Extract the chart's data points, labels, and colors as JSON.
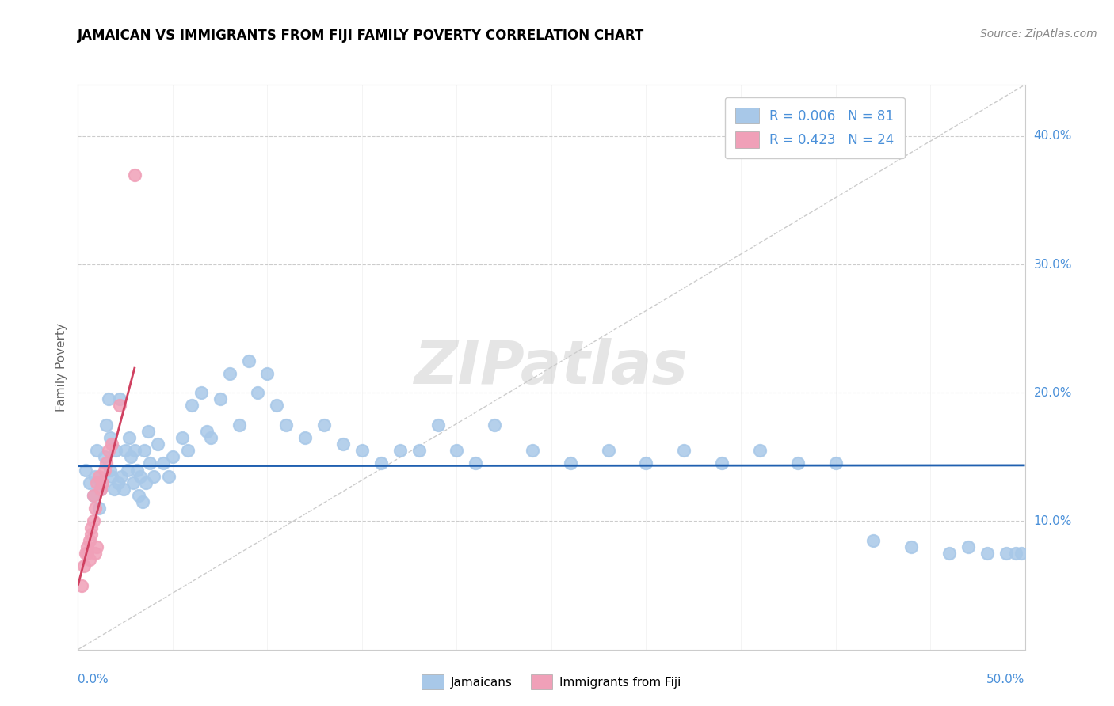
{
  "title": "JAMAICAN VS IMMIGRANTS FROM FIJI FAMILY POVERTY CORRELATION CHART",
  "source": "Source: ZipAtlas.com",
  "ylabel": "Family Poverty",
  "xmin": 0.0,
  "xmax": 0.5,
  "ymin": 0.0,
  "ymax": 0.44,
  "yticks": [
    0.1,
    0.2,
    0.3,
    0.4
  ],
  "ytick_labels": [
    "10.0%",
    "20.0%",
    "30.0%",
    "40.0%"
  ],
  "series1_color": "#a8c8e8",
  "series2_color": "#f0a0b8",
  "trend1_color": "#2060b0",
  "trend2_color": "#d04060",
  "watermark": "ZIPatlas",
  "legend1_label": "R = 0.006   N = 81",
  "legend2_label": "R = 0.423   N = 24",
  "bottom_label1": "Jamaicans",
  "bottom_label2": "Immigrants from Fiji",
  "jamaicans_x": [
    0.004,
    0.006,
    0.008,
    0.009,
    0.01,
    0.011,
    0.012,
    0.013,
    0.014,
    0.015,
    0.016,
    0.017,
    0.017,
    0.018,
    0.019,
    0.02,
    0.021,
    0.022,
    0.023,
    0.024,
    0.025,
    0.026,
    0.027,
    0.028,
    0.029,
    0.03,
    0.031,
    0.032,
    0.033,
    0.034,
    0.035,
    0.036,
    0.037,
    0.038,
    0.04,
    0.042,
    0.045,
    0.048,
    0.05,
    0.055,
    0.058,
    0.06,
    0.065,
    0.068,
    0.07,
    0.075,
    0.08,
    0.085,
    0.09,
    0.095,
    0.1,
    0.105,
    0.11,
    0.12,
    0.13,
    0.14,
    0.15,
    0.16,
    0.17,
    0.18,
    0.19,
    0.2,
    0.21,
    0.22,
    0.24,
    0.26,
    0.28,
    0.3,
    0.32,
    0.34,
    0.36,
    0.38,
    0.4,
    0.42,
    0.44,
    0.46,
    0.47,
    0.48,
    0.49,
    0.495,
    0.498
  ],
  "jamaicans_y": [
    0.14,
    0.13,
    0.12,
    0.135,
    0.155,
    0.11,
    0.125,
    0.13,
    0.15,
    0.175,
    0.195,
    0.165,
    0.14,
    0.135,
    0.125,
    0.155,
    0.13,
    0.195,
    0.135,
    0.125,
    0.155,
    0.14,
    0.165,
    0.15,
    0.13,
    0.155,
    0.14,
    0.12,
    0.135,
    0.115,
    0.155,
    0.13,
    0.17,
    0.145,
    0.135,
    0.16,
    0.145,
    0.135,
    0.15,
    0.165,
    0.155,
    0.19,
    0.2,
    0.17,
    0.165,
    0.195,
    0.215,
    0.175,
    0.225,
    0.2,
    0.215,
    0.19,
    0.175,
    0.165,
    0.175,
    0.16,
    0.155,
    0.145,
    0.155,
    0.155,
    0.175,
    0.155,
    0.145,
    0.175,
    0.155,
    0.145,
    0.155,
    0.145,
    0.155,
    0.145,
    0.155,
    0.145,
    0.145,
    0.085,
    0.08,
    0.075,
    0.08,
    0.075,
    0.075,
    0.075,
    0.075
  ],
  "fiji_x": [
    0.002,
    0.003,
    0.004,
    0.005,
    0.005,
    0.006,
    0.006,
    0.007,
    0.007,
    0.008,
    0.008,
    0.009,
    0.009,
    0.01,
    0.01,
    0.011,
    0.012,
    0.013,
    0.014,
    0.015,
    0.016,
    0.018,
    0.022,
    0.03
  ],
  "fiji_y": [
    0.05,
    0.065,
    0.075,
    0.075,
    0.08,
    0.085,
    0.07,
    0.09,
    0.095,
    0.1,
    0.12,
    0.11,
    0.075,
    0.13,
    0.08,
    0.135,
    0.125,
    0.13,
    0.14,
    0.145,
    0.155,
    0.16,
    0.19,
    0.37
  ],
  "jam_trend_intercept": 0.143,
  "jam_trend_slope": 0.001,
  "fiji_trend_x0": 0.0,
  "fiji_trend_y0": 0.05,
  "fiji_trend_x1": 0.03,
  "fiji_trend_y1": 0.22
}
